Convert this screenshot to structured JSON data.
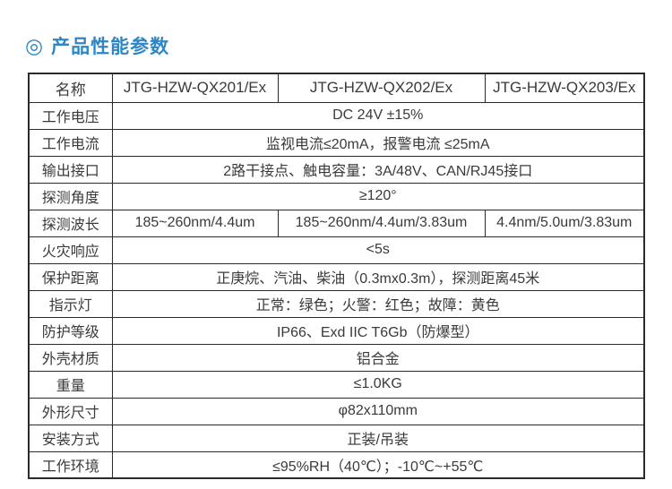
{
  "page": {
    "title_icon": "◎",
    "title": "产品性能参数"
  },
  "colors": {
    "title_blue": "#2e86c4",
    "table_border": "#2b2b2b",
    "text": "#3a3a3a"
  },
  "table": {
    "header": [
      "名称",
      "JTG-HZW-QX201/Ex",
      "JTG-HZW-QX202/Ex",
      "JTG-HZW-QX203/Ex"
    ],
    "rows": [
      {
        "label": "工作电压",
        "cells": [
          "DC 24V ±15%"
        ]
      },
      {
        "label": "工作电流",
        "cells": [
          "监视电流≤20mA，报警电流 ≤25mA"
        ]
      },
      {
        "label": "输出接口",
        "cells": [
          "2路干接点、触电容量：3A/48V、CAN/RJ45接口"
        ]
      },
      {
        "label": "探测角度",
        "cells": [
          "≥120°"
        ]
      },
      {
        "label": "探测波长",
        "cells": [
          "185~260nm/4.4um",
          "185~260nm/4.4um/3.83um",
          "4.4nm/5.0um/3.83um"
        ]
      },
      {
        "label": "火灾响应",
        "cells": [
          "<5s"
        ]
      },
      {
        "label": "保护距离",
        "cells": [
          "正庚烷、汽油、柴油（0.3mx0.3m），探测距离45米"
        ]
      },
      {
        "label": "指示灯",
        "cells": [
          "正常：绿色；火警：红色；故障：黄色"
        ]
      },
      {
        "label": "防护等级",
        "cells": [
          "IP66、Exd IIC T6Gb（防爆型）"
        ]
      },
      {
        "label": "外壳材质",
        "cells": [
          "铝合金"
        ]
      },
      {
        "label": "重量",
        "cells": [
          "≤1.0KG"
        ]
      },
      {
        "label": "外形尺寸",
        "cells": [
          "φ82x110mm"
        ]
      },
      {
        "label": "安装方式",
        "cells": [
          "正装/吊装"
        ]
      },
      {
        "label": "工作环境",
        "cells": [
          "≤95%RH（40℃）；-10℃~+55℃"
        ]
      }
    ]
  }
}
